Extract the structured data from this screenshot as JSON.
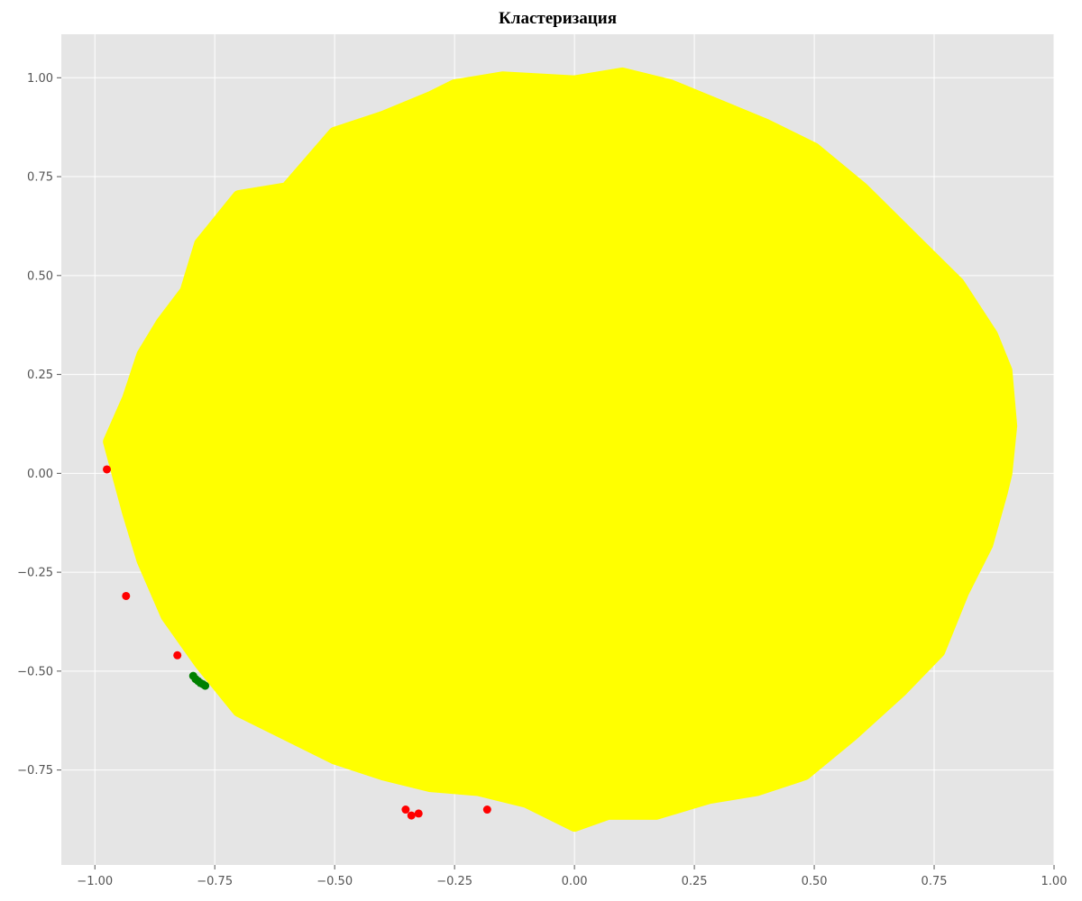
{
  "chart_data": {
    "type": "scatter",
    "title": "Кластеризация",
    "xlabel": "",
    "ylabel": "",
    "xlim": [
      -1.07,
      1.0
    ],
    "ylim": [
      -0.99,
      1.11
    ],
    "grid": true,
    "x_ticks": [
      -1.0,
      -0.75,
      -0.5,
      -0.25,
      0.0,
      0.25,
      0.5,
      0.75,
      1.0
    ],
    "x_tick_labels": [
      "−1.00",
      "−0.75",
      "−0.50",
      "−0.25",
      "0.00",
      "0.25",
      "0.50",
      "0.75",
      "1.00"
    ],
    "y_ticks": [
      -0.75,
      -0.5,
      -0.25,
      0.0,
      0.25,
      0.5,
      0.75,
      1.0
    ],
    "y_tick_labels": [
      "−0.75",
      "−0.50",
      "−0.25",
      "0.00",
      "0.25",
      "0.50",
      "0.75",
      "1.00"
    ],
    "colors": {
      "background": "#e5e5e5",
      "grid": "#ffffff"
    },
    "series": [
      {
        "color": "#ffff00",
        "description_region": "dense blob roughly centered at (0.05, 0.1), x from -0.97 to 0.92, y from -0.89 to 1.02",
        "values": [
          [
            0.05,
            0.1
          ],
          [
            0.0,
            0.99
          ],
          [
            0.1,
            1.01
          ],
          [
            0.2,
            0.98
          ],
          [
            0.3,
            0.93
          ],
          [
            0.4,
            0.88
          ],
          [
            0.5,
            0.82
          ],
          [
            0.6,
            0.72
          ],
          [
            0.7,
            0.6
          ],
          [
            0.8,
            0.48
          ],
          [
            0.87,
            0.35
          ],
          [
            0.9,
            0.26
          ],
          [
            0.91,
            0.12
          ],
          [
            0.9,
            0.0
          ],
          [
            0.89,
            -0.05
          ],
          [
            0.86,
            -0.18
          ],
          [
            0.81,
            -0.3
          ],
          [
            0.76,
            -0.45
          ],
          [
            0.68,
            -0.55
          ],
          [
            0.58,
            -0.66
          ],
          [
            0.48,
            -0.76
          ],
          [
            0.38,
            -0.8
          ],
          [
            0.28,
            -0.82
          ],
          [
            0.17,
            -0.86
          ],
          [
            0.07,
            -0.86
          ],
          [
            0.0,
            -0.89
          ],
          [
            -0.1,
            -0.83
          ],
          [
            -0.2,
            -0.8
          ],
          [
            -0.3,
            -0.79
          ],
          [
            -0.4,
            -0.76
          ],
          [
            -0.5,
            -0.72
          ],
          [
            -0.6,
            -0.66
          ],
          [
            -0.7,
            -0.6
          ],
          [
            -0.78,
            -0.48
          ],
          [
            -0.85,
            -0.36
          ],
          [
            -0.9,
            -0.22
          ],
          [
            -0.93,
            -0.1
          ],
          [
            -0.97,
            0.08
          ],
          [
            -0.93,
            0.19
          ],
          [
            -0.9,
            0.3
          ],
          [
            -0.86,
            0.38
          ],
          [
            -0.81,
            0.46
          ],
          [
            -0.78,
            0.58
          ],
          [
            -0.7,
            0.7
          ],
          [
            -0.6,
            0.72
          ],
          [
            -0.5,
            0.86
          ],
          [
            -0.4,
            0.9
          ],
          [
            -0.3,
            0.95
          ],
          [
            -0.25,
            0.98
          ],
          [
            -0.15,
            1.0
          ]
        ]
      },
      {
        "color": "#ff0000",
        "values": [
          [
            -0.975,
            0.01
          ],
          [
            -0.935,
            -0.31
          ],
          [
            -0.828,
            -0.46
          ],
          [
            -0.352,
            -0.85
          ],
          [
            -0.34,
            -0.865
          ],
          [
            -0.325,
            -0.86
          ],
          [
            -0.182,
            -0.85
          ]
        ]
      },
      {
        "color": "#008000",
        "values": [
          [
            -0.795,
            -0.512
          ],
          [
            -0.79,
            -0.52
          ],
          [
            -0.785,
            -0.525
          ],
          [
            -0.78,
            -0.53
          ],
          [
            -0.775,
            -0.533
          ],
          [
            -0.77,
            -0.537
          ]
        ]
      }
    ]
  }
}
